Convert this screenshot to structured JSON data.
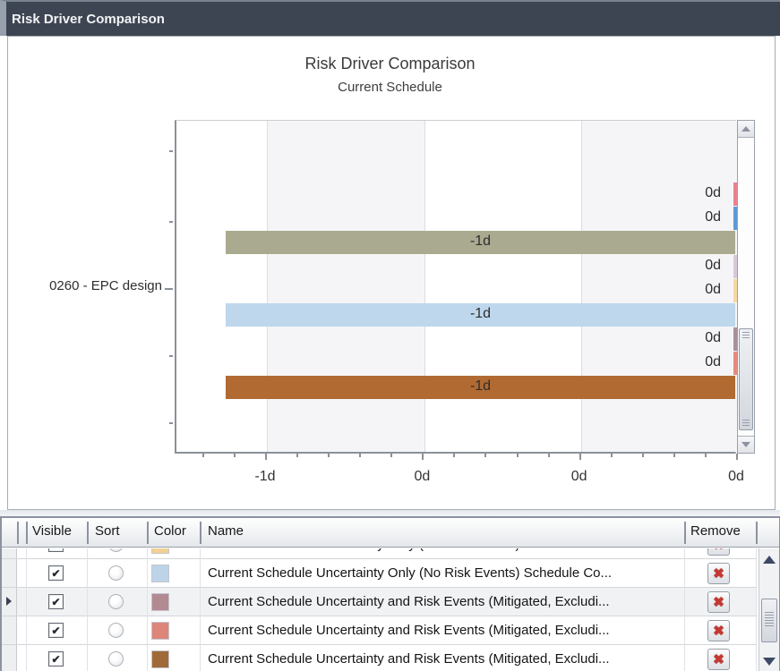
{
  "window": {
    "title": "Risk Driver Comparison"
  },
  "chart": {
    "title": "Risk Driver Comparison",
    "subtitle": "Current Schedule",
    "category_label": "0260 - EPC design",
    "x_axis_labels": [
      "-1d",
      "0d",
      "0d",
      "0d"
    ]
  },
  "chart_data": {
    "type": "bar",
    "orientation": "horizontal",
    "title": "Risk Driver Comparison",
    "subtitle": "Current Schedule",
    "categories": [
      "0260 - EPC design"
    ],
    "x_tick_labels": [
      "-1d",
      "0d",
      "0d",
      "0d"
    ],
    "grid": "vertical-major-with-alternating-bands",
    "series": [
      {
        "color": "#e8818e",
        "value_label": "0d",
        "value_days": 0
      },
      {
        "color": "#5b9bd5",
        "value_label": "0d",
        "value_days": 0
      },
      {
        "color": "#aaaa90",
        "value_label": "-1d",
        "value_days": -1
      },
      {
        "color": "#d9c8d8",
        "value_label": "0d",
        "value_days": 0
      },
      {
        "color": "#f6d8a2",
        "value_label": "0d",
        "value_days": 0
      },
      {
        "color": "#bed7ec",
        "value_label": "-1d",
        "value_days": -1
      },
      {
        "color": "#a9909a",
        "value_label": "0d",
        "value_days": 0
      },
      {
        "color": "#e58a7c",
        "value_label": "0d",
        "value_days": 0
      },
      {
        "color": "#b16a32",
        "value_label": "-1d",
        "value_days": -1
      }
    ]
  },
  "icons": {
    "check": "✔",
    "remove_x": "✖"
  },
  "table": {
    "headers": {
      "visible": "Visible",
      "sort": "Sort",
      "color": "Color",
      "name": "Name",
      "remove": "Remove"
    },
    "rows": [
      {
        "visible": true,
        "color": "#f2d096",
        "name": "Current Schedule Uncertainty Only (No Risk Events) Schedule Con...",
        "current": false
      },
      {
        "visible": true,
        "color": "#bdd3e8",
        "name": "Current Schedule Uncertainty Only (No Risk Events) Schedule Co...",
        "current": false
      },
      {
        "visible": true,
        "color": "#b48a92",
        "name": "Current Schedule Uncertainty and Risk Events (Mitigated, Excludi...",
        "current": true
      },
      {
        "visible": true,
        "color": "#dd8579",
        "name": "Current Schedule Uncertainty and Risk Events (Mitigated, Excludi...",
        "current": false
      },
      {
        "visible": true,
        "color": "#a06a38",
        "name": "Current Schedule Uncertainty and Risk Events (Mitigated, Excludi...",
        "current": false
      }
    ]
  }
}
